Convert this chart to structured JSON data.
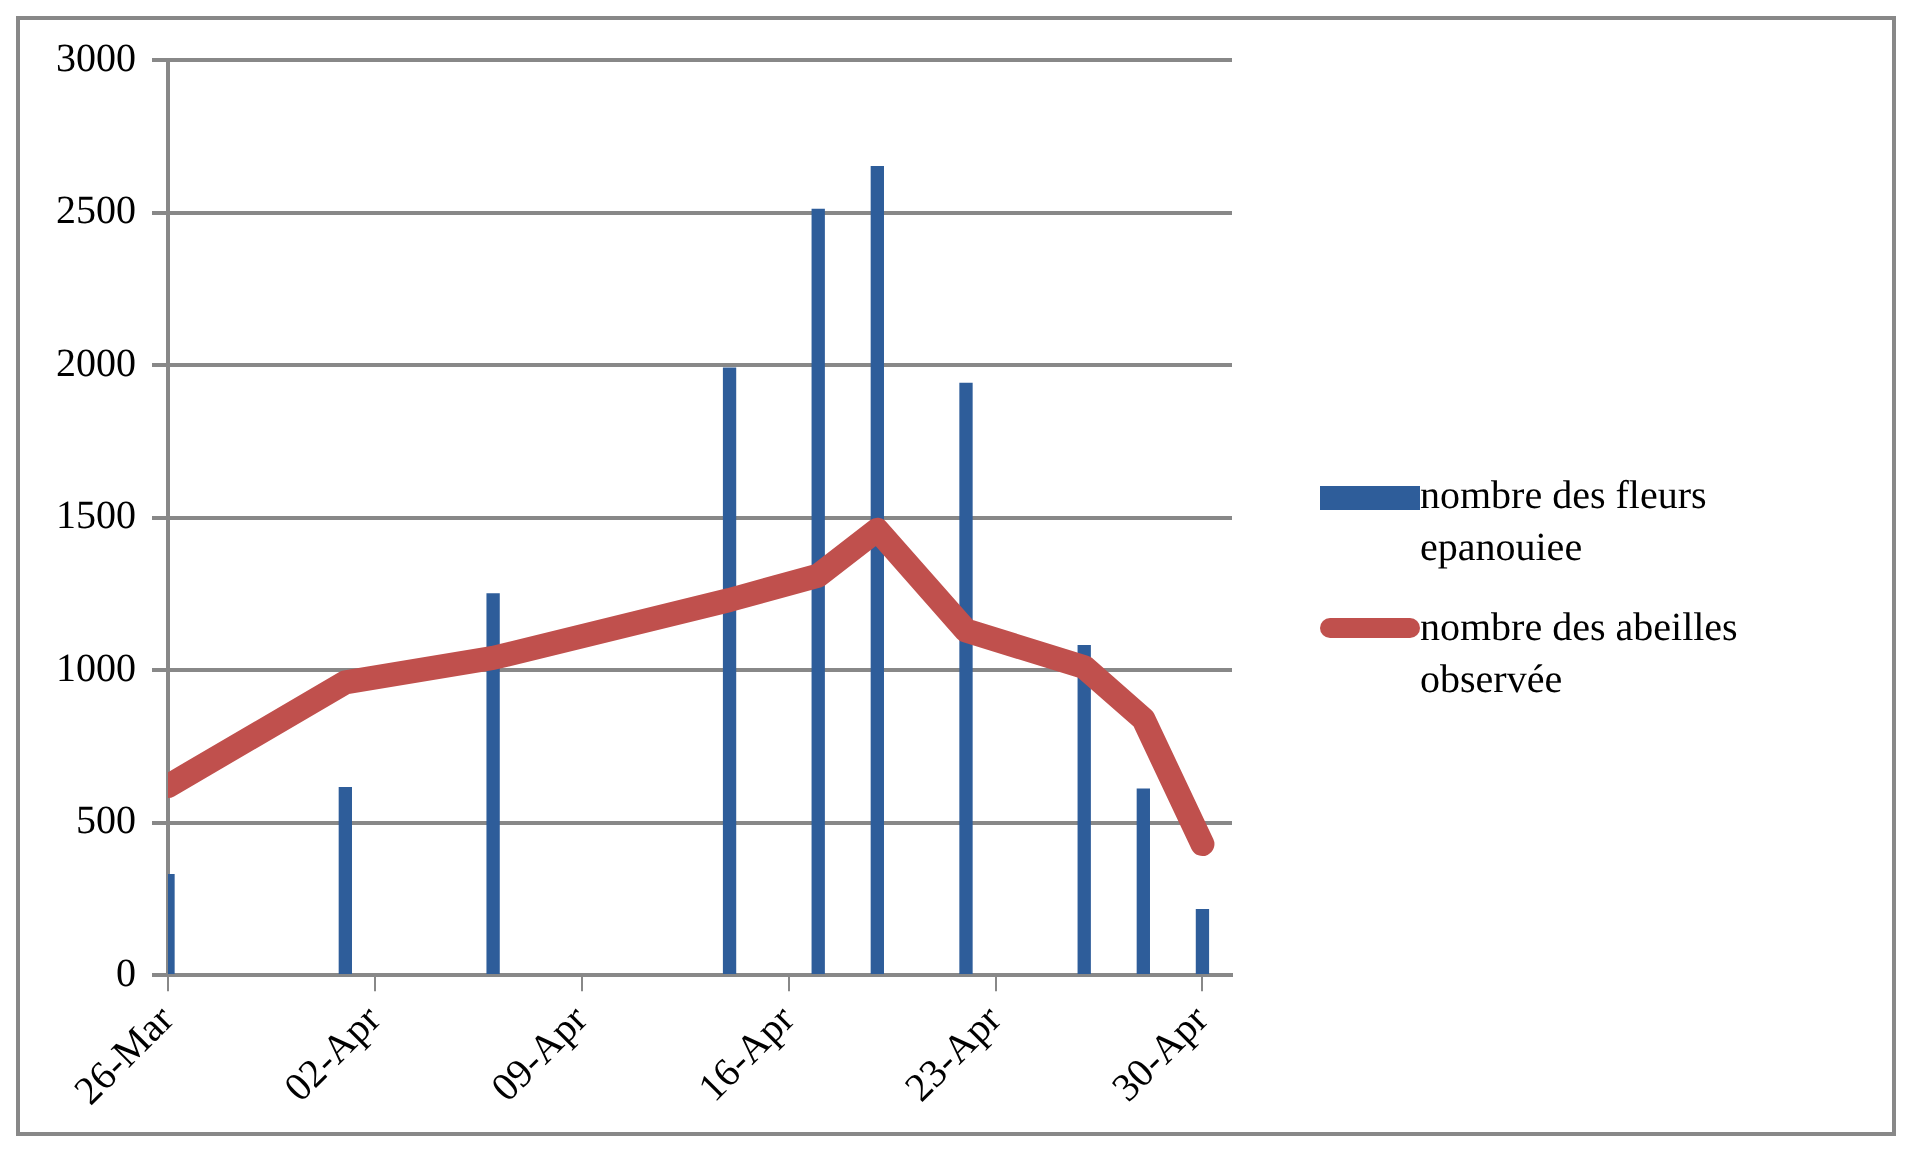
{
  "chart_data": {
    "type": "bar",
    "x": [
      "--03-26",
      "--04-01",
      "--04-06",
      "--04-14",
      "--04-17",
      "--04-19",
      "--04-22",
      "--04-26",
      "--04-28",
      "--04-30"
    ],
    "series": [
      {
        "name": "nombre des fleurs epanouiee",
        "color": "#2e5d9a",
        "values": [
          330,
          615,
          1250,
          1990,
          2510,
          2650,
          1940,
          1080,
          610,
          215
        ]
      },
      {
        "name": "nombre des abeilles observée",
        "type": "line",
        "color": "#c0504d",
        "values": [
          620,
          960,
          1040,
          1230,
          1310,
          1460,
          1130,
          1010,
          840,
          430
        ]
      }
    ],
    "xlim": [
      "--03-26",
      "--05-01"
    ],
    "xticks": [
      {
        "value": "--03-26",
        "label": "26-Mar"
      },
      {
        "value": "--04-02",
        "label": "02-Apr"
      },
      {
        "value": "--04-09",
        "label": "09-Apr"
      },
      {
        "value": "--04-16",
        "label": "16-Apr"
      },
      {
        "value": "--04-23",
        "label": "23-Apr"
      },
      {
        "value": "--04-30",
        "label": "30-Apr"
      }
    ],
    "ylim": [
      0,
      3000
    ],
    "yticks": [
      0,
      500,
      1000,
      1500,
      2000,
      2500,
      3000
    ],
    "grid": "y",
    "legend": "right",
    "marker": "none"
  }
}
